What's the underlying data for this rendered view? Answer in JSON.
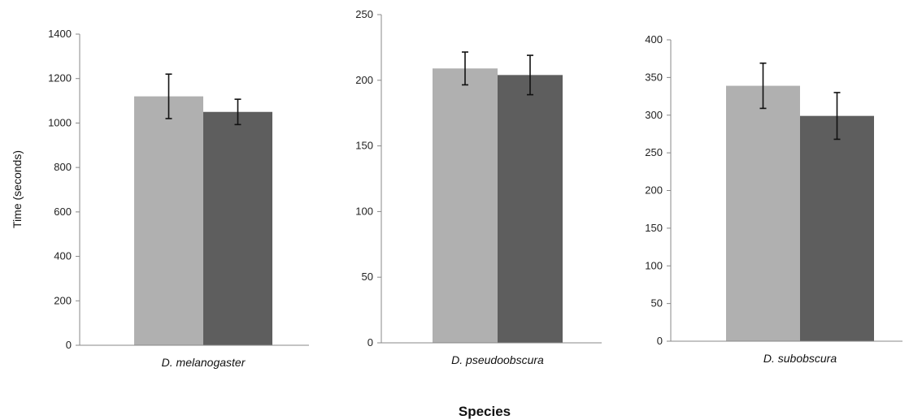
{
  "chart_data": [
    {
      "type": "bar",
      "categories": [
        "D. melanogaster"
      ],
      "series": [
        {
          "color": "#b0b0b0",
          "values": [
            1120
          ],
          "error": [
            100
          ]
        },
        {
          "color": "#5e5e5e",
          "values": [
            1050
          ],
          "error": [
            57
          ]
        }
      ],
      "ylabel": "Time (seconds)",
      "yticks": [
        0,
        200,
        400,
        600,
        800,
        1000,
        1200,
        1400
      ],
      "ylim": [
        0,
        1400
      ],
      "grid": false
    },
    {
      "type": "bar",
      "categories": [
        "D. pseudoobscura"
      ],
      "series": [
        {
          "color": "#b0b0b0",
          "values": [
            209
          ],
          "error": [
            12.5
          ]
        },
        {
          "color": "#5e5e5e",
          "values": [
            204
          ],
          "error": [
            15
          ]
        }
      ],
      "ylabel": "",
      "yticks": [
        0,
        50,
        100,
        150,
        200,
        250
      ],
      "ylim": [
        0,
        250
      ],
      "grid": false
    },
    {
      "type": "bar",
      "categories": [
        "D. subobscura"
      ],
      "series": [
        {
          "color": "#b0b0b0",
          "values": [
            339
          ],
          "error": [
            30
          ]
        },
        {
          "color": "#5e5e5e",
          "values": [
            299
          ],
          "error": [
            31
          ]
        }
      ],
      "ylabel": "",
      "yticks": [
        0,
        50,
        100,
        150,
        200,
        250,
        300,
        350,
        400
      ],
      "ylim": [
        0,
        400
      ],
      "grid": false
    }
  ],
  "xlabel": "Species"
}
